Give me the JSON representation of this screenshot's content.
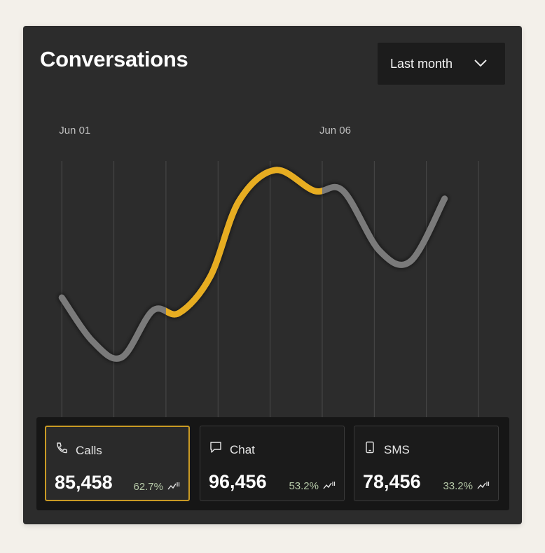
{
  "widget": {
    "title": "Conversations",
    "range_select": {
      "value": "Last month",
      "icon": "chevron-down-icon"
    }
  },
  "colors": {
    "highlight": "#e7ad21",
    "line": "#7a7a7a",
    "card_bg": "#2c2c2c",
    "panel_bg": "#161616",
    "positive": "#b6c9a8"
  },
  "chart_data": {
    "type": "line",
    "title": "Conversations",
    "x": [
      1,
      2,
      3,
      4,
      5,
      6,
      7,
      8,
      9
    ],
    "x_tick_labels": [
      {
        "x": 1,
        "label": "Jun 01"
      },
      {
        "x": 6,
        "label": "Jun 06"
      }
    ],
    "series": [
      {
        "points": [
          {
            "x": 1,
            "y": 46
          },
          {
            "x": 1.6,
            "y": 29
          },
          {
            "x": 2.15,
            "y": 23
          },
          {
            "x": 2.75,
            "y": 41
          },
          {
            "x": 3.25,
            "y": 40
          },
          {
            "x": 3.85,
            "y": 54
          },
          {
            "x": 4.4,
            "y": 83
          },
          {
            "x": 5.1,
            "y": 95
          },
          {
            "x": 5.85,
            "y": 87
          },
          {
            "x": 6.4,
            "y": 87
          },
          {
            "x": 7.1,
            "y": 64
          },
          {
            "x": 7.7,
            "y": 60
          },
          {
            "x": 8.35,
            "y": 84
          }
        ],
        "highlight_range": [
          3,
          6
        ]
      }
    ],
    "ylim": [
      0,
      120
    ],
    "grid": "vertical",
    "xlim": [
      0.97,
      9
    ]
  },
  "metrics": [
    {
      "label": "Calls",
      "value": "85,458",
      "change": "62.7%",
      "icon": "phone-icon",
      "trend_icon": "trend-up-icon",
      "active": true
    },
    {
      "label": "Chat",
      "value": "96,456",
      "change": "53.2%",
      "icon": "chat-bubble-icon",
      "trend_icon": "trend-up-icon",
      "active": false
    },
    {
      "label": "SMS",
      "value": "78,456",
      "change": "33.2%",
      "icon": "mobile-phone-icon",
      "trend_icon": "trend-up-icon",
      "active": false
    }
  ]
}
